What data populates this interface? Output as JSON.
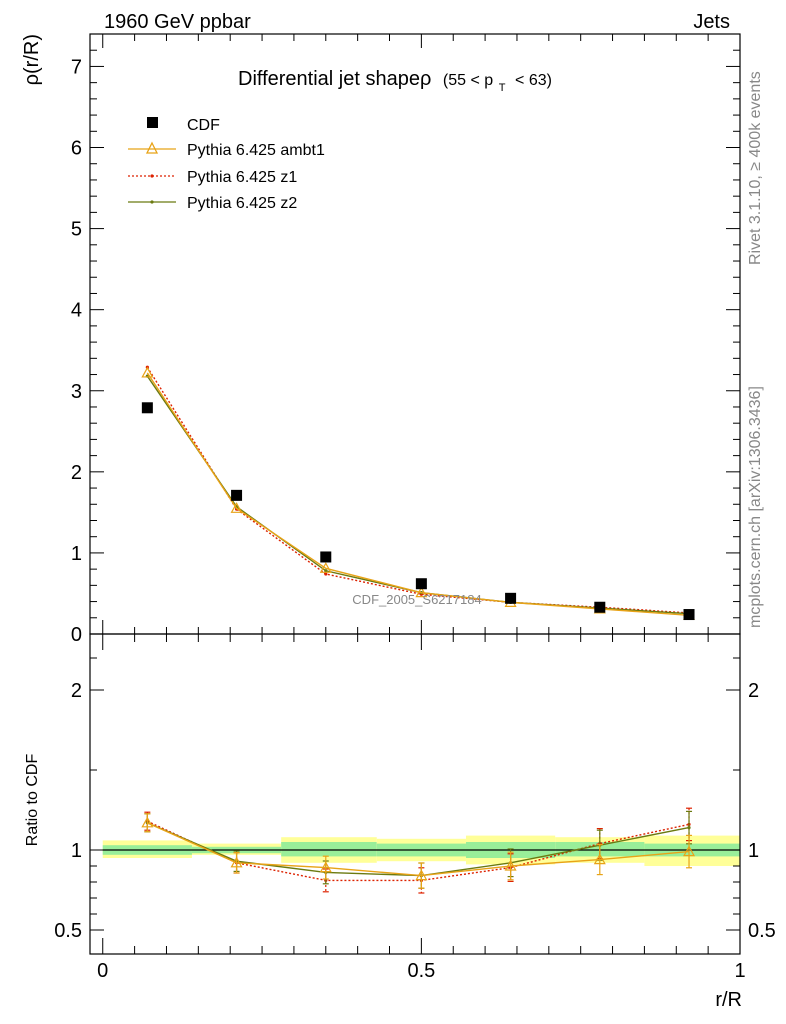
{
  "header": {
    "left": "1960 GeV ppbar",
    "right": "Jets"
  },
  "side_labels": {
    "rivet": "Rivet 3.1.10, ≥ 400k events",
    "mcplots": "mcplots.cern.ch [arXiv:1306.3436]"
  },
  "watermark": "CDF_2005_S6217184",
  "title": {
    "main": "Differential jet shapeρ",
    "cut_open": "(55 < p",
    "cut_sub": "T",
    "cut_close": "< 63)"
  },
  "colors": {
    "cdf": "#000000",
    "ambt1": "#e8a317",
    "z1": "#dd2200",
    "z2": "#6b7a10",
    "band_inner": "#99ee99",
    "band_outer": "#ffff99"
  },
  "chart_data": [
    {
      "type": "scatter",
      "panel": "main",
      "ylabel": "ρ(r/R)",
      "xlim": [
        -0.02,
        1.0
      ],
      "ylim": [
        0,
        7.4
      ],
      "y_ticks": [
        0,
        1,
        2,
        3,
        4,
        5,
        6,
        7
      ],
      "x": [
        0.07,
        0.21,
        0.35,
        0.5,
        0.64,
        0.78,
        0.92
      ],
      "series": [
        {
          "name": "CDF",
          "style": "marker-square",
          "values": [
            2.79,
            1.71,
            0.95,
            0.62,
            0.44,
            0.33,
            0.24
          ]
        },
        {
          "name": "Pythia 6.425 ambt1",
          "style": "line-triangle",
          "values": [
            3.22,
            1.55,
            0.81,
            0.51,
            0.39,
            0.31,
            0.23
          ]
        },
        {
          "name": "Pythia 6.425 z1",
          "style": "dotted",
          "values": [
            3.29,
            1.54,
            0.74,
            0.49,
            0.39,
            0.33,
            0.26
          ]
        },
        {
          "name": "Pythia 6.425 z2",
          "style": "solid",
          "values": [
            3.18,
            1.57,
            0.78,
            0.51,
            0.39,
            0.32,
            0.25
          ]
        }
      ],
      "legend": "top-left"
    },
    {
      "type": "line",
      "panel": "ratio",
      "ylabel": "Ratio to CDF",
      "xlabel": "r/R",
      "xlim": [
        -0.02,
        1.0
      ],
      "ylim": [
        0.35,
        2.35
      ],
      "y_ticks": [
        0.5,
        1,
        2
      ],
      "y_tick_labels": [
        "0.5",
        "1",
        "2"
      ],
      "x_ticks": [
        0,
        0.5,
        1
      ],
      "x_tick_labels": [
        "0",
        "0.5",
        "1"
      ],
      "x": [
        0.07,
        0.21,
        0.35,
        0.5,
        0.64,
        0.78,
        0.92
      ],
      "bins": [
        [
          0.0,
          0.14
        ],
        [
          0.14,
          0.28
        ],
        [
          0.28,
          0.43
        ],
        [
          0.43,
          0.57
        ],
        [
          0.57,
          0.71
        ],
        [
          0.71,
          0.85
        ],
        [
          0.85,
          1.0
        ]
      ],
      "band_inner": [
        [
          0.97,
          1.03
        ],
        [
          0.98,
          1.02
        ],
        [
          0.96,
          1.05
        ],
        [
          0.96,
          1.04
        ],
        [
          0.95,
          1.05
        ],
        [
          0.96,
          1.05
        ],
        [
          0.96,
          1.04
        ]
      ],
      "band_outer": [
        [
          0.95,
          1.06
        ],
        [
          0.97,
          1.04
        ],
        [
          0.92,
          1.08
        ],
        [
          0.93,
          1.07
        ],
        [
          0.91,
          1.09
        ],
        [
          0.92,
          1.08
        ],
        [
          0.9,
          1.09
        ]
      ],
      "series": [
        {
          "name": "Pythia 6.425 ambt1",
          "values": [
            1.17,
            0.92,
            0.89,
            0.84,
            0.9,
            0.94,
            0.99
          ]
        },
        {
          "name": "Pythia 6.425 z1",
          "values": [
            1.18,
            0.92,
            0.81,
            0.81,
            0.89,
            1.04,
            1.16
          ]
        },
        {
          "name": "Pythia 6.425 z2",
          "values": [
            1.17,
            0.93,
            0.86,
            0.84,
            0.92,
            1.03,
            1.14
          ]
        }
      ]
    }
  ]
}
